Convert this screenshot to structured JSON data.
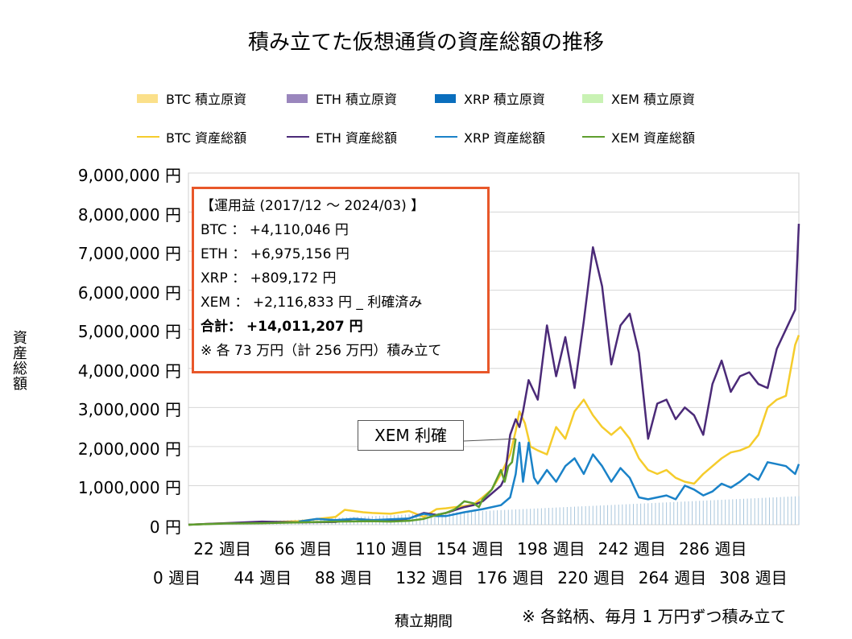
{
  "chart_data": {
    "type": "line",
    "title": "積み立てた仮想通貨の資産総額の推移",
    "ylabel": "資産総額",
    "xlabel": "積立期間",
    "ylim": [
      0,
      9000000
    ],
    "xlim": [
      0,
      332
    ],
    "grid": "horizontal",
    "legend_position": "top",
    "y_ticks": [
      "9,000,000 円",
      "8,000,000 円",
      "7,000,000 円",
      "6,000,000 円",
      "5,000,000 円",
      "4,000,000 円",
      "3,000,000 円",
      "2,000,000 円",
      "1,000,000 円",
      "0 円"
    ],
    "x_ticks_upper": [
      "22 週目",
      "66 週目",
      "110 週目",
      "154 週目",
      "198 週目",
      "242 週目",
      "286 週目"
    ],
    "x_ticks_lower": [
      "0 週目",
      "44 週目",
      "88 週目",
      "132 週目",
      "176 週目",
      "220 週目",
      "264 週目",
      "308 週目"
    ],
    "legend": [
      {
        "label": "BTC  積立原資",
        "kind": "area",
        "color": "#fbe08a"
      },
      {
        "label": "ETH  積立原資",
        "kind": "area",
        "color": "#9a86bd"
      },
      {
        "label": "XRP  積立原資",
        "kind": "area",
        "color": "#0a6ebd"
      },
      {
        "label": "XEM  積立原資",
        "kind": "area",
        "color": "#c9f2b4"
      },
      {
        "label": "BTC  資産総額",
        "kind": "line",
        "color": "#f5cc2c"
      },
      {
        "label": "ETH  資産総額",
        "kind": "line",
        "color": "#4b2a78"
      },
      {
        "label": "XRP  資産総額",
        "kind": "line",
        "color": "#1a82c8"
      },
      {
        "label": "XEM  資産総額",
        "kind": "line",
        "color": "#5e9e2e"
      }
    ],
    "contribution_total_end": 730000,
    "series": [
      {
        "name": "BTC  資産総額",
        "color": "#f5cc2c",
        "x": [
          0,
          20,
          40,
          60,
          80,
          85,
          95,
          100,
          110,
          120,
          128,
          135,
          140,
          150,
          155,
          160,
          165,
          170,
          175,
          178,
          180,
          183,
          186,
          190,
          195,
          200,
          205,
          210,
          215,
          220,
          225,
          230,
          235,
          240,
          245,
          250,
          255,
          260,
          265,
          270,
          275,
          280,
          285,
          290,
          295,
          300,
          305,
          310,
          315,
          320,
          325,
          330,
          332
        ],
        "y": [
          0,
          40000,
          60000,
          90000,
          200000,
          380000,
          320000,
          300000,
          280000,
          350000,
          200000,
          400000,
          420000,
          480000,
          520000,
          700000,
          900000,
          1300000,
          1800000,
          2400000,
          2900000,
          2600000,
          2000000,
          1900000,
          1800000,
          2500000,
          2200000,
          2900000,
          3200000,
          2800000,
          2500000,
          2300000,
          2500000,
          2200000,
          1700000,
          1400000,
          1300000,
          1400000,
          1200000,
          1100000,
          1050000,
          1300000,
          1500000,
          1700000,
          1850000,
          1900000,
          2000000,
          2300000,
          3000000,
          3200000,
          3300000,
          4600000,
          4850000
        ]
      },
      {
        "name": "ETH  資産総額",
        "color": "#4b2a78",
        "x": [
          0,
          20,
          40,
          60,
          80,
          90,
          100,
          110,
          120,
          128,
          135,
          140,
          150,
          155,
          160,
          165,
          170,
          172,
          175,
          178,
          180,
          182,
          185,
          190,
          195,
          200,
          205,
          210,
          215,
          220,
          225,
          230,
          235,
          240,
          245,
          250,
          255,
          260,
          265,
          270,
          275,
          280,
          285,
          290,
          295,
          300,
          305,
          310,
          315,
          318,
          320,
          325,
          330,
          332
        ],
        "y": [
          0,
          40000,
          80000,
          60000,
          70000,
          150000,
          120000,
          100000,
          160000,
          300000,
          250000,
          300000,
          450000,
          500000,
          600000,
          800000,
          1000000,
          1200000,
          2300000,
          2700000,
          2500000,
          2900000,
          3700000,
          3200000,
          5100000,
          3800000,
          4800000,
          3500000,
          5200000,
          7100000,
          6100000,
          4100000,
          5100000,
          5400000,
          4400000,
          2200000,
          3100000,
          3200000,
          2700000,
          3000000,
          2800000,
          2300000,
          3600000,
          4200000,
          3400000,
          3800000,
          3900000,
          3600000,
          3500000,
          4100000,
          4500000,
          5000000,
          5500000,
          7700000
        ]
      },
      {
        "name": "XRP  資産総額",
        "color": "#1a82c8",
        "x": [
          60,
          70,
          80,
          90,
          100,
          110,
          120,
          128,
          135,
          140,
          150,
          160,
          170,
          175,
          178,
          180,
          182,
          185,
          188,
          190,
          195,
          200,
          205,
          210,
          215,
          220,
          225,
          230,
          235,
          240,
          245,
          250,
          255,
          260,
          265,
          270,
          275,
          280,
          285,
          290,
          295,
          300,
          305,
          310,
          315,
          320,
          325,
          330,
          332
        ],
        "y": [
          80000,
          150000,
          120000,
          150000,
          120000,
          140000,
          160000,
          280000,
          220000,
          220000,
          320000,
          400000,
          500000,
          700000,
          1300000,
          2100000,
          1100000,
          2100000,
          1200000,
          1050000,
          1400000,
          1100000,
          1500000,
          1700000,
          1300000,
          1800000,
          1500000,
          1100000,
          1450000,
          1200000,
          700000,
          650000,
          700000,
          750000,
          650000,
          1000000,
          900000,
          750000,
          850000,
          1050000,
          950000,
          1100000,
          1300000,
          1150000,
          1600000,
          1550000,
          1500000,
          1300000,
          1550000
        ]
      },
      {
        "name": "XEM  資産総額",
        "color": "#5e9e2e",
        "x": [
          0,
          20,
          40,
          60,
          80,
          100,
          110,
          120,
          128,
          135,
          140,
          145,
          150,
          155,
          158,
          160,
          163,
          165,
          168,
          170,
          172,
          174,
          176,
          178
        ],
        "y": [
          0,
          30000,
          40000,
          60000,
          80000,
          90000,
          80000,
          100000,
          150000,
          250000,
          300000,
          400000,
          600000,
          550000,
          450000,
          650000,
          800000,
          900000,
          1200000,
          1400000,
          1100000,
          1500000,
          1600000,
          2200000
        ]
      }
    ]
  },
  "infobox": {
    "line1": "【運用益 (2017/12 ～ 2024/03) 】",
    "line2": "BTC ： +4,110,046 円",
    "line3": "ETH ： +6,975,156 円",
    "line4": "XRP ： +809,172 円",
    "line5": "XEM ： +2,116,833 円 _ 利確済み",
    "line6": "合計： +14,011,207 円",
    "line7": "※ 各 73 万円（計 256 万円）積み立て"
  },
  "callout": "XEM 利確",
  "footnote": "※ 各銘柄、毎月 1 万円ずつ積み立て"
}
